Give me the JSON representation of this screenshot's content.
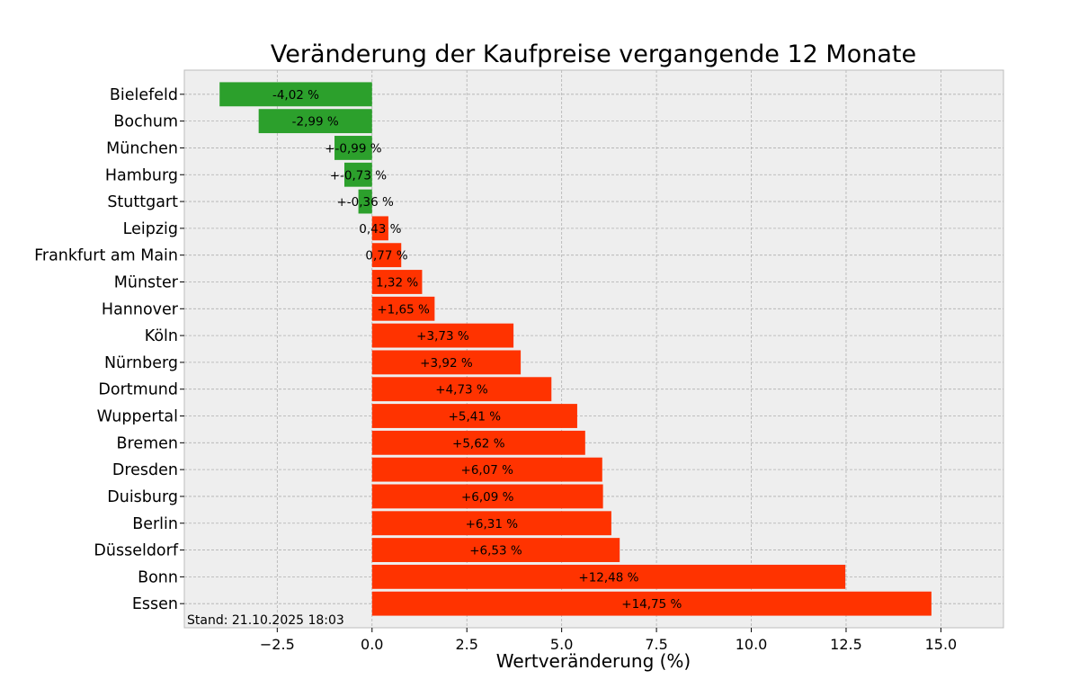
{
  "chart_data": {
    "type": "bar",
    "orientation": "horizontal",
    "title": "Veränderung der Kaufpreise vergangende 12 Monate",
    "xlabel": "Wertveränderung (%)",
    "ylabel": "",
    "xlim": [
      -4.95,
      16.65
    ],
    "xticks": [
      -2.5,
      0.0,
      2.5,
      5.0,
      7.5,
      10.0,
      12.5,
      15.0
    ],
    "xtick_labels": [
      "−2.5",
      "0.0",
      "2.5",
      "5.0",
      "7.5",
      "10.0",
      "12.5",
      "15.0"
    ],
    "grid": true,
    "footnote": "Stand: 21.10.2025 18:03",
    "categories": [
      "Bielefeld",
      "Bochum",
      "München",
      "Hamburg",
      "Stuttgart",
      "Leipzig",
      "Frankfurt am Main",
      "Münster",
      "Hannover",
      "Köln",
      "Nürnberg",
      "Dortmund",
      "Wuppertal",
      "Bremen",
      "Dresden",
      "Duisburg",
      "Berlin",
      "Düsseldorf",
      "Bonn",
      "Essen"
    ],
    "values": [
      -4.02,
      -2.99,
      -0.99,
      -0.73,
      -0.36,
      0.43,
      0.77,
      1.32,
      1.65,
      3.73,
      3.92,
      4.73,
      5.41,
      5.62,
      6.07,
      6.09,
      6.31,
      6.53,
      12.48,
      14.75
    ],
    "data_labels": [
      "-4,02 %",
      "-2,99 %",
      "+-0,99 %",
      "+-0,73 %",
      "+-0,36 %",
      "0,43 %",
      "0,77 %",
      "1,32 %",
      "+1,65 %",
      "+3,73 %",
      "+3,92 %",
      "+4,73 %",
      "+5,41 %",
      "+5,62 %",
      "+6,07 %",
      "+6,09 %",
      "+6,31 %",
      "+6,53 %",
      "+12,48 %",
      "+14,75 %"
    ],
    "colors": {
      "negative": "#2ca02c",
      "positive": "#ff3300",
      "plot_background": "#eeeeee",
      "grid": "#b0b0b0",
      "frame": "#bcbcbc"
    }
  }
}
